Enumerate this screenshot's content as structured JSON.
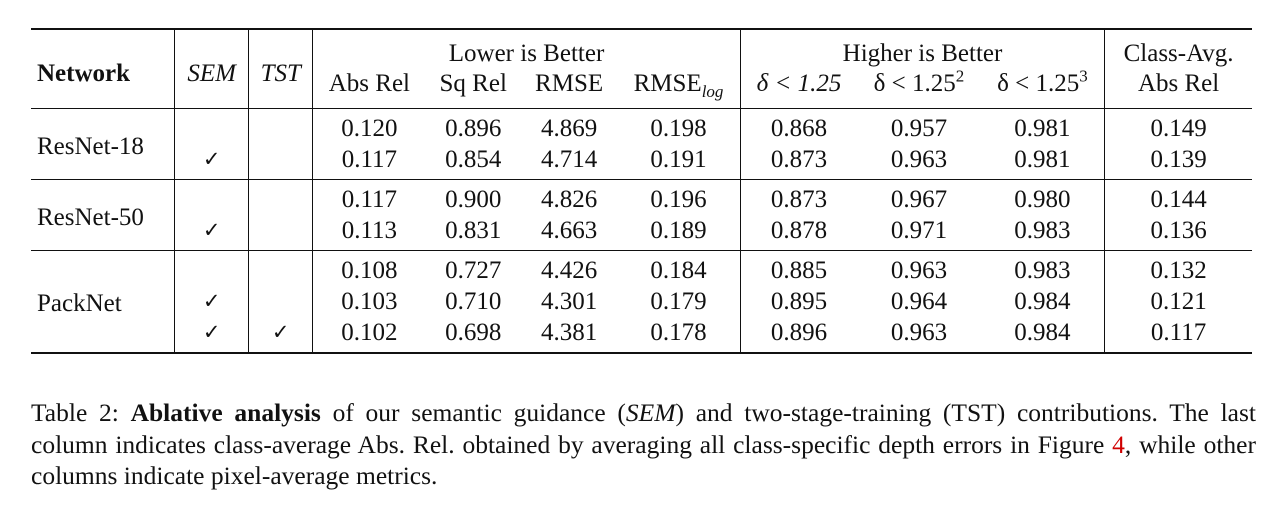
{
  "table": {
    "headers": {
      "network": "Network",
      "sem": "SEM",
      "tst": "TST",
      "lower_group": "Lower is Better",
      "higher_group": "Higher is Better",
      "class_avg_top": "Class-Avg.",
      "class_avg_bottom": "Abs Rel",
      "abs_rel": "Abs Rel",
      "sq_rel": "Sq Rel",
      "rmse": "RMSE",
      "rmse_log_main": "RMSE",
      "rmse_log_sub": "log",
      "delta1": "δ < 1.25",
      "delta2_main": "δ < 1.25",
      "delta2_sup": "2",
      "delta3_main": "δ < 1.25",
      "delta3_sup": "3"
    },
    "check_mark": "✓",
    "groups": [
      {
        "network": "ResNet-18",
        "rows": [
          {
            "sem": "",
            "tst": "",
            "abs_rel": "0.120",
            "sq_rel": "0.896",
            "rmse": "4.869",
            "rmse_log": "0.198",
            "d1": "0.868",
            "d2": "0.957",
            "d3": "0.981",
            "class_avg": "0.149"
          },
          {
            "sem": "✓",
            "tst": "",
            "abs_rel": "0.117",
            "sq_rel": "0.854",
            "rmse": "4.714",
            "rmse_log": "0.191",
            "d1": "0.873",
            "d2": "0.963",
            "d3": "0.981",
            "class_avg": "0.139"
          }
        ]
      },
      {
        "network": "ResNet-50",
        "rows": [
          {
            "sem": "",
            "tst": "",
            "abs_rel": "0.117",
            "sq_rel": "0.900",
            "rmse": "4.826",
            "rmse_log": "0.196",
            "d1": "0.873",
            "d2": "0.967",
            "d3": "0.980",
            "class_avg": "0.144"
          },
          {
            "sem": "✓",
            "tst": "",
            "abs_rel": "0.113",
            "sq_rel": "0.831",
            "rmse": "4.663",
            "rmse_log": "0.189",
            "d1": "0.878",
            "d2": "0.971",
            "d3": "0.983",
            "class_avg": "0.136"
          }
        ]
      },
      {
        "network": "PackNet",
        "rows": [
          {
            "sem": "",
            "tst": "",
            "abs_rel": "0.108",
            "sq_rel": "0.727",
            "rmse": "4.426",
            "rmse_log": "0.184",
            "d1": "0.885",
            "d2": "0.963",
            "d3": "0.983",
            "class_avg": "0.132"
          },
          {
            "sem": "✓",
            "tst": "",
            "abs_rel": "0.103",
            "sq_rel": "0.710",
            "rmse": "4.301",
            "rmse_log": "0.179",
            "d1": "0.895",
            "d2": "0.964",
            "d3": "0.984",
            "class_avg": "0.121"
          },
          {
            "sem": "✓",
            "tst": "✓",
            "abs_rel": "0.102",
            "sq_rel": "0.698",
            "rmse": "4.381",
            "rmse_log": "0.178",
            "d1": "0.896",
            "d2": "0.963",
            "d3": "0.984",
            "class_avg": "0.117"
          }
        ]
      }
    ]
  },
  "caption": {
    "label": "Table 2:",
    "bold": "Ablative analysis",
    "text1": " of our semantic guidance (",
    "sem_italic": "SEM",
    "text2": ") and two-stage-training (TST) contributions. The last column indicates class-average Abs. Rel. obtained by averaging all class-specific depth errors in Figure ",
    "figure_ref": "4",
    "text3": ", while other columns indicate pixel-average metrics."
  }
}
